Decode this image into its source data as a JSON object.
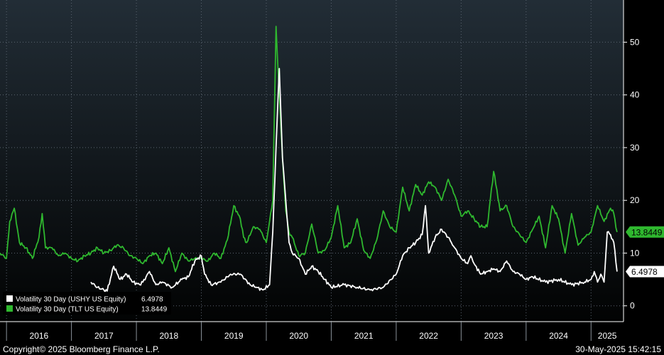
{
  "chart_data": {
    "type": "line",
    "title": "",
    "xlabel": "",
    "ylabel": "",
    "x_range": [
      2015.9,
      2025.5
    ],
    "ylim": [
      -3,
      58
    ],
    "y_ticks": [
      0,
      10,
      20,
      30,
      40,
      50
    ],
    "year_labels": [
      "2016",
      "2017",
      "2018",
      "2019",
      "2020",
      "2021",
      "2022",
      "2023",
      "2024",
      "2025"
    ],
    "grid": true,
    "legend_position": "bottom-left",
    "series": [
      {
        "name": "Volatility 30 Day (USHY US Equity)",
        "color": "#ffffff",
        "last_value": "6.4978",
        "x": [
          2017.3,
          2017.4,
          2017.5,
          2017.55,
          2017.65,
          2017.75,
          2017.85,
          2017.95,
          2018.05,
          2018.1,
          2018.2,
          2018.3,
          2018.4,
          2018.55,
          2018.7,
          2018.8,
          2018.9,
          2019.0,
          2019.05,
          2019.15,
          2019.3,
          2019.45,
          2019.6,
          2019.75,
          2019.85,
          2019.95,
          2020.05,
          2020.1,
          2020.15,
          2020.2,
          2020.25,
          2020.3,
          2020.35,
          2020.4,
          2020.5,
          2020.6,
          2020.7,
          2020.8,
          2020.9,
          2021.0,
          2021.2,
          2021.4,
          2021.6,
          2021.8,
          2022.0,
          2022.1,
          2022.2,
          2022.3,
          2022.4,
          2022.45,
          2022.5,
          2022.6,
          2022.7,
          2022.8,
          2022.85,
          2022.9,
          2023.0,
          2023.1,
          2023.15,
          2023.2,
          2023.3,
          2023.4,
          2023.5,
          2023.6,
          2023.7,
          2023.8,
          2023.9,
          2024.0,
          2024.1,
          2024.3,
          2024.5,
          2024.7,
          2024.9,
          2025.0,
          2025.05,
          2025.1,
          2025.15,
          2025.2,
          2025.25,
          2025.3,
          2025.35,
          2025.4
        ],
        "values": [
          4.5,
          3.5,
          3.0,
          2.8,
          7.5,
          5.0,
          6.0,
          4.5,
          4.0,
          4.5,
          6.5,
          4.0,
          4.5,
          3.5,
          5.0,
          5.5,
          8.5,
          9.5,
          6.0,
          4.0,
          4.5,
          6.0,
          6.0,
          4.0,
          3.5,
          3.0,
          4.0,
          14.0,
          30.0,
          45.0,
          28.0,
          20.0,
          12.0,
          10.0,
          9.0,
          6.0,
          7.5,
          6.5,
          5.0,
          3.5,
          4.0,
          3.5,
          3.0,
          3.5,
          6.0,
          9.5,
          11.0,
          12.0,
          13.5,
          19.0,
          10.0,
          13.0,
          14.5,
          13.0,
          12.0,
          11.0,
          9.0,
          8.0,
          9.5,
          8.0,
          6.0,
          6.5,
          7.0,
          6.5,
          8.5,
          6.5,
          6.0,
          5.0,
          5.5,
          4.5,
          5.0,
          4.0,
          4.5,
          5.0,
          6.5,
          4.5,
          6.0,
          4.5,
          14.0,
          13.5,
          12.0,
          6.5
        ]
      },
      {
        "name": "Volatility 30 Day (TLT US Equity)",
        "color": "#2fb82f",
        "last_value": "13.8449",
        "x": [
          2015.9,
          2016.0,
          2016.05,
          2016.12,
          2016.2,
          2016.3,
          2016.4,
          2016.5,
          2016.55,
          2016.6,
          2016.7,
          2016.8,
          2016.9,
          2017.0,
          2017.1,
          2017.2,
          2017.3,
          2017.4,
          2017.5,
          2017.6,
          2017.7,
          2017.8,
          2017.9,
          2018.0,
          2018.1,
          2018.2,
          2018.3,
          2018.4,
          2018.5,
          2018.6,
          2018.7,
          2018.8,
          2018.9,
          2019.0,
          2019.1,
          2019.2,
          2019.3,
          2019.4,
          2019.5,
          2019.6,
          2019.65,
          2019.7,
          2019.8,
          2019.9,
          2020.0,
          2020.1,
          2020.15,
          2020.2,
          2020.25,
          2020.3,
          2020.35,
          2020.4,
          2020.5,
          2020.6,
          2020.7,
          2020.8,
          2020.9,
          2021.0,
          2021.1,
          2021.2,
          2021.3,
          2021.4,
          2021.5,
          2021.6,
          2021.7,
          2021.8,
          2021.9,
          2022.0,
          2022.1,
          2022.2,
          2022.3,
          2022.4,
          2022.5,
          2022.6,
          2022.7,
          2022.8,
          2022.9,
          2023.0,
          2023.1,
          2023.2,
          2023.3,
          2023.4,
          2023.5,
          2023.55,
          2023.6,
          2023.7,
          2023.8,
          2023.9,
          2024.0,
          2024.1,
          2024.2,
          2024.3,
          2024.4,
          2024.5,
          2024.6,
          2024.7,
          2024.8,
          2024.9,
          2025.0,
          2025.1,
          2025.2,
          2025.3,
          2025.35,
          2025.4
        ],
        "values": [
          10.0,
          9.0,
          16.0,
          18.5,
          12.0,
          11.0,
          9.0,
          13.0,
          17.5,
          11.0,
          11.0,
          9.5,
          10.0,
          9.0,
          8.5,
          9.5,
          10.0,
          11.0,
          10.0,
          10.5,
          11.5,
          11.0,
          9.5,
          9.0,
          8.0,
          9.5,
          10.0,
          8.0,
          11.0,
          6.5,
          10.0,
          8.5,
          9.0,
          9.0,
          8.5,
          10.0,
          9.0,
          12.5,
          19.0,
          16.5,
          13.0,
          12.0,
          15.0,
          14.5,
          12.0,
          20.0,
          53.0,
          40.0,
          28.0,
          18.0,
          14.0,
          13.0,
          9.5,
          10.0,
          15.5,
          10.0,
          10.5,
          13.0,
          19.0,
          11.0,
          12.0,
          16.5,
          10.5,
          9.0,
          12.5,
          18.0,
          15.0,
          14.0,
          22.5,
          18.0,
          23.0,
          21.0,
          23.5,
          22.5,
          20.0,
          24.0,
          21.0,
          17.0,
          18.0,
          16.5,
          15.0,
          15.0,
          25.5,
          22.0,
          18.0,
          19.0,
          15.0,
          13.5,
          12.0,
          14.5,
          17.0,
          11.0,
          19.0,
          16.5,
          10.0,
          17.5,
          11.5,
          13.0,
          14.0,
          19.0,
          16.0,
          18.5,
          17.5,
          14.0
        ]
      }
    ]
  },
  "legend": {
    "items": [
      {
        "label": "Volatility 30 Day (USHY US Equity)",
        "value": "6.4978"
      },
      {
        "label": "Volatility 30 Day (TLT US Equity)",
        "value": "13.8449"
      }
    ]
  },
  "footer": {
    "copyright": "Copyright© 2025 Bloomberg Finance L.P.",
    "timestamp": "30-May-2025 15:42:15"
  },
  "colors": {
    "background_top": "#1f2a33",
    "background_bottom": "#000000",
    "grid": "#5a6470",
    "ushy": "#ffffff",
    "tlt": "#2fb82f"
  }
}
